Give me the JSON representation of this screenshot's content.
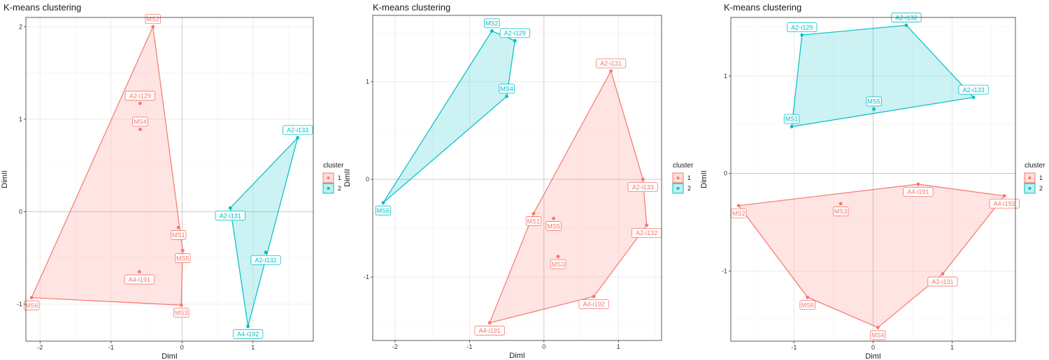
{
  "colors": {
    "cluster1": "#F8766D",
    "cluster2": "#00BFC4",
    "grid": "#e6e6e6",
    "border": "#333333"
  },
  "chart_data": [
    {
      "type": "scatter",
      "title": "K-means clustering",
      "xlabel": "DimI",
      "ylabel": "DimII",
      "xlim": [
        -2.2,
        1.85
      ],
      "ylim": [
        -1.4,
        2.1
      ],
      "xticks": [
        -2,
        -1,
        0,
        1
      ],
      "yticks": [
        -1,
        0,
        1,
        2
      ],
      "grid": true,
      "legend": {
        "title": "cluster",
        "entries": [
          "1",
          "2"
        ],
        "placement": "right"
      },
      "series": [
        {
          "name": "1",
          "points": [
            {
              "label": "MS2",
              "x": -0.41,
              "y": 2.0
            },
            {
              "label": "A2-i129",
              "x": -0.59,
              "y": 1.17
            },
            {
              "label": "MS4",
              "x": -0.59,
              "y": 0.89
            },
            {
              "label": "MS1",
              "x": -0.05,
              "y": -0.17
            },
            {
              "label": "MS5",
              "x": 0.01,
              "y": -0.42
            },
            {
              "label": "A4-i191",
              "x": -0.6,
              "y": -0.65
            },
            {
              "label": "MS6",
              "x": -2.12,
              "y": -0.93
            },
            {
              "label": "MS3",
              "x": -0.01,
              "y": -1.01
            }
          ]
        },
        {
          "name": "2",
          "points": [
            {
              "label": "A2-i133",
              "x": 1.63,
              "y": 0.8
            },
            {
              "label": "A2-i131",
              "x": 0.68,
              "y": 0.04
            },
            {
              "label": "A2-i132",
              "x": 1.18,
              "y": -0.44
            },
            {
              "label": "A4-i192",
              "x": 0.93,
              "y": -1.24
            }
          ]
        }
      ]
    },
    {
      "type": "scatter",
      "title": "K-means clustering",
      "xlabel": "DimI",
      "ylabel": "DimII",
      "xlim": [
        -2.3,
        1.58
      ],
      "ylim": [
        -1.65,
        1.68
      ],
      "xticks": [
        -2,
        -1,
        0,
        1
      ],
      "yticks": [
        -1,
        0,
        1
      ],
      "grid": true,
      "legend": {
        "title": "cluster",
        "entries": [
          "1",
          "2"
        ],
        "placement": "right"
      },
      "series": [
        {
          "name": "1",
          "points": [
            {
              "label": "A2-i131",
              "x": 0.9,
              "y": 1.11
            },
            {
              "label": "A2-i133",
              "x": 1.33,
              "y": 0.0
            },
            {
              "label": "MS1",
              "x": -0.14,
              "y": -0.35
            },
            {
              "label": "MS5",
              "x": 0.13,
              "y": -0.4
            },
            {
              "label": "A2-i132",
              "x": 1.38,
              "y": -0.47
            },
            {
              "label": "MS3",
              "x": 0.19,
              "y": -0.79
            },
            {
              "label": "A4-i192",
              "x": 0.67,
              "y": -1.2
            },
            {
              "label": "A4-i191",
              "x": -0.73,
              "y": -1.47
            }
          ]
        },
        {
          "name": "2",
          "points": [
            {
              "label": "MS2",
              "x": -0.7,
              "y": 1.52
            },
            {
              "label": "A2-i129",
              "x": -0.39,
              "y": 1.42
            },
            {
              "label": "MS4",
              "x": -0.5,
              "y": 0.85
            },
            {
              "label": "MS6",
              "x": -2.16,
              "y": -0.24
            }
          ]
        }
      ]
    },
    {
      "type": "scatter",
      "title": "K-means clustering",
      "xlabel": "DimI",
      "ylabel": "DimII",
      "xlim": [
        -1.8,
        1.8
      ],
      "ylim": [
        -1.72,
        1.6
      ],
      "xticks": [
        -1,
        0,
        1
      ],
      "yticks": [
        -1,
        0,
        1
      ],
      "grid": true,
      "legend": {
        "title": "cluster",
        "entries": [
          "1",
          "2"
        ],
        "placement": "right"
      },
      "series": [
        {
          "name": "1",
          "points": [
            {
              "label": "A4-i191",
              "x": 0.57,
              "y": -0.11
            },
            {
              "label": "A4-i192",
              "x": 1.66,
              "y": -0.23
            },
            {
              "label": "MS3",
              "x": -0.41,
              "y": -0.31
            },
            {
              "label": "MS2",
              "x": -1.7,
              "y": -0.33
            },
            {
              "label": "A2-i131",
              "x": 0.88,
              "y": -1.03
            },
            {
              "label": "MS6",
              "x": -0.83,
              "y": -1.27
            },
            {
              "label": "MS4",
              "x": 0.06,
              "y": -1.58
            }
          ]
        },
        {
          "name": "2",
          "points": [
            {
              "label": "A2-i132",
              "x": 0.42,
              "y": 1.52
            },
            {
              "label": "A2-i129",
              "x": -0.9,
              "y": 1.42
            },
            {
              "label": "A2-i133",
              "x": 1.27,
              "y": 0.78
            },
            {
              "label": "MS5",
              "x": 0.01,
              "y": 0.66
            },
            {
              "label": "MS1",
              "x": -1.03,
              "y": 0.48
            }
          ]
        }
      ]
    }
  ]
}
